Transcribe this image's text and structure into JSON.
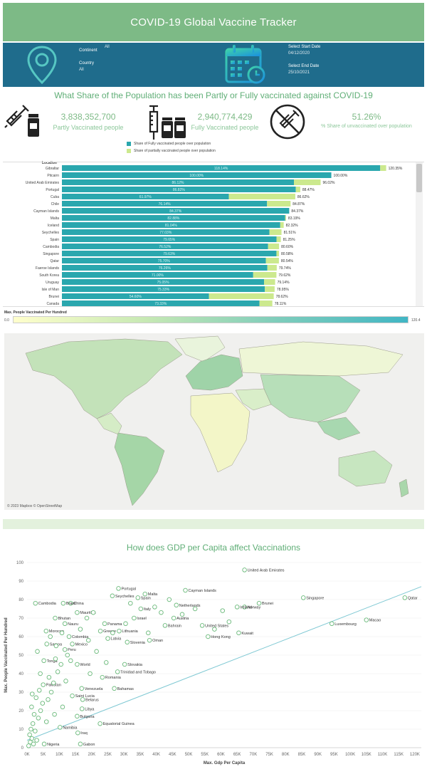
{
  "header": {
    "title": "COVID-19 Global Vaccine Tracker"
  },
  "filters": {
    "continent_label": "Continent",
    "continent_value": "All",
    "country_label": "Country",
    "country_value": "All",
    "start_label": "Select Start Date",
    "start_value": "04/12/2020",
    "end_label": "Select End Date",
    "end_value": "25/10/2021"
  },
  "kpi": {
    "title": "What Share of the Population has been Partly or Fully vaccinated against COVID-19",
    "partly_value": "3,838,352,700",
    "partly_label": "Partly Vaccinated people",
    "fully_value": "2,940,774,429",
    "fully_label": "Fully Vaccinated people",
    "unvax_value": "51.26%",
    "unvax_label": "% Share of unvaccinated over population"
  },
  "colors": {
    "fully": "#2aa7ae",
    "partly": "#cce98e",
    "accent": "#7dba86",
    "filter_bg": "#1f6c8c"
  },
  "bar_section": {
    "location_title": "Location",
    "legend_fully": "Share of Fully vaccinated people over population",
    "legend_partly": "Share of partially vaccinated people over population"
  },
  "scale": {
    "title": "Max. People Vaccinated Per Hundred",
    "min": "0.0",
    "max": "120.4"
  },
  "map": {
    "attribution": "© 2023 Mapbox © OpenStreetMap"
  },
  "scatter_title": "How does GDP per Capita affect Vaccinations",
  "chart_data": [
    {
      "type": "bar",
      "stacked": true,
      "categories": [
        "Gibraltar",
        "Pitcairn",
        "United Arab Emirates",
        "Portugal",
        "Cuba",
        "Chile",
        "Cayman Islands",
        "Malta",
        "Iceland",
        "Seychelles",
        "Spain",
        "Cambodia",
        "Singapore",
        "Qatar",
        "Faeroe Islands",
        "South Korea",
        "Uruguay",
        "Isle of Man",
        "Brunei",
        "Canada"
      ],
      "series": [
        {
          "name": "Share of Fully vaccinated people over population",
          "values": [
            118.14,
            100.0,
            86.12,
            86.82,
            61.97,
            76.14,
            84.37,
            82.88,
            81.04,
            77.03,
            79.65,
            76.52,
            79.63,
            75.7,
            76.26,
            71.0,
            75.05,
            75.33,
            54.6,
            73.33
          ]
        },
        {
          "name": "Share of partially vaccinated people over population",
          "values": [
            2.21,
            0.0,
            9.9,
            1.65,
            24.65,
            8.73,
            0.0,
            0.31,
            1.28,
            4.48,
            1.6,
            4.08,
            0.95,
            4.84,
            3.48,
            8.62,
            4.09,
            3.62,
            24.02,
            4.78
          ]
        }
      ],
      "totals": [
        "120.35%",
        "100.00%",
        "96.02%",
        "88.47%",
        "86.62%",
        "84.87%",
        "84.37%",
        "83.19%",
        "82.32%",
        "81.51%",
        "81.25%",
        "80.60%",
        "80.58%",
        "80.54%",
        "79.74%",
        "79.62%",
        "79.14%",
        "78.95%",
        "78.62%",
        "78.11%"
      ],
      "inner_labels": [
        "118.14%",
        "100.00%",
        "86.12%",
        "86.82%",
        "61.97%",
        "76.14%",
        "84.37%",
        "82.88%",
        "81.04%",
        "77.03%",
        "79.65%",
        "76.52%",
        "79.63%",
        "75.70%",
        "76.26%",
        "71.00%",
        "75.05%",
        "75.33%",
        "54.60%",
        "73.33%"
      ],
      "xlim": [
        0,
        125
      ]
    },
    {
      "type": "scatter",
      "title": "How does GDP per Capita affect Vaccinations",
      "xlabel": "Max. Gdp Per Capita",
      "ylabel": "Max. People Vaccinated Per Hundred",
      "xlim": [
        0,
        122000
      ],
      "ylim": [
        0,
        100
      ],
      "xticks": [
        "0K",
        "5K",
        "10K",
        "15K",
        "20K",
        "25K",
        "30K",
        "35K",
        "40K",
        "45K",
        "50K",
        "55K",
        "60K",
        "65K",
        "70K",
        "75K",
        "80K",
        "85K",
        "90K",
        "95K",
        "100K",
        "105K",
        "110K",
        "115K",
        "120K"
      ],
      "yticks": [
        0,
        10,
        20,
        30,
        40,
        50,
        60,
        70,
        80,
        90,
        100
      ],
      "trendline": {
        "x": [
          0,
          122000
        ],
        "y": [
          4,
          87
        ]
      },
      "points": [
        {
          "x": 67300,
          "y": 96,
          "label": "United Arab Emirates"
        },
        {
          "x": 116900,
          "y": 81,
          "label": "Qatar"
        },
        {
          "x": 85500,
          "y": 81,
          "label": "Singapore"
        },
        {
          "x": 105000,
          "y": 69,
          "label": "Macao"
        },
        {
          "x": 94300,
          "y": 67,
          "label": "Luxembourg"
        },
        {
          "x": 71800,
          "y": 78,
          "label": "Brunei"
        },
        {
          "x": 67300,
          "y": 76,
          "label": "Norway"
        },
        {
          "x": 65000,
          "y": 76,
          "label": "Ireland"
        },
        {
          "x": 54200,
          "y": 66,
          "label": "United States"
        },
        {
          "x": 56000,
          "y": 60,
          "label": "Hong Kong"
        },
        {
          "x": 65500,
          "y": 62,
          "label": "Kuwait"
        },
        {
          "x": 49000,
          "y": 85,
          "label": "Cayman Islands"
        },
        {
          "x": 46200,
          "y": 77,
          "label": "Netherlands"
        },
        {
          "x": 45400,
          "y": 70,
          "label": "Austria"
        },
        {
          "x": 42700,
          "y": 66,
          "label": "Bahrain"
        },
        {
          "x": 36500,
          "y": 83,
          "label": "Malta"
        },
        {
          "x": 34300,
          "y": 81,
          "label": "Spain"
        },
        {
          "x": 35200,
          "y": 75,
          "label": "Italy"
        },
        {
          "x": 33100,
          "y": 70,
          "label": "Israel"
        },
        {
          "x": 28300,
          "y": 86,
          "label": "Portugal"
        },
        {
          "x": 26400,
          "y": 82,
          "label": "Seychelles"
        },
        {
          "x": 28500,
          "y": 63,
          "label": "Lithuania"
        },
        {
          "x": 37900,
          "y": 58,
          "label": "Oman"
        },
        {
          "x": 31000,
          "y": 57,
          "label": "Slovenia"
        },
        {
          "x": 24000,
          "y": 67,
          "label": "Panama"
        },
        {
          "x": 22700,
          "y": 63,
          "label": "Greece"
        },
        {
          "x": 25000,
          "y": 59,
          "label": "Latvia"
        },
        {
          "x": 15500,
          "y": 73,
          "label": "Mauritius"
        },
        {
          "x": 13500,
          "y": 78,
          "label": "China"
        },
        {
          "x": 11200,
          "y": 78,
          "label": "Brazil"
        },
        {
          "x": 2600,
          "y": 78,
          "label": "Cambodia"
        },
        {
          "x": 8700,
          "y": 70,
          "label": "Bhutan"
        },
        {
          "x": 11700,
          "y": 67,
          "label": "Nauru"
        },
        {
          "x": 13000,
          "y": 60,
          "label": "Colombia"
        },
        {
          "x": 14000,
          "y": 56,
          "label": "Mexico"
        },
        {
          "x": 5900,
          "y": 63,
          "label": "Morocco"
        },
        {
          "x": 6100,
          "y": 56,
          "label": "Samoa"
        },
        {
          "x": 11700,
          "y": 53,
          "label": "Peru"
        },
        {
          "x": 5200,
          "y": 47,
          "label": "Tonga"
        },
        {
          "x": 15500,
          "y": 45,
          "label": "World"
        },
        {
          "x": 30200,
          "y": 45,
          "label": "Slovakia"
        },
        {
          "x": 28000,
          "y": 41,
          "label": "Trinidad and Tobago"
        },
        {
          "x": 23300,
          "y": 38,
          "label": "Romania"
        },
        {
          "x": 5000,
          "y": 34,
          "label": "Pakistan"
        },
        {
          "x": 16900,
          "y": 32,
          "label": "Venezuela"
        },
        {
          "x": 27000,
          "y": 32,
          "label": "Bahamas"
        },
        {
          "x": 14000,
          "y": 28,
          "label": "Saint Lucia"
        },
        {
          "x": 17200,
          "y": 26,
          "label": "Belarus"
        },
        {
          "x": 17000,
          "y": 21,
          "label": "Libya"
        },
        {
          "x": 15500,
          "y": 17,
          "label": "Bulgaria"
        },
        {
          "x": 22600,
          "y": 13,
          "label": "Equatorial Guinea"
        },
        {
          "x": 10200,
          "y": 11,
          "label": "Namibia"
        },
        {
          "x": 15700,
          "y": 8,
          "label": "Iraq"
        },
        {
          "x": 16500,
          "y": 2,
          "label": "Gabon"
        },
        {
          "x": 5300,
          "y": 2,
          "label": "Nigeria"
        },
        {
          "x": 500,
          "y": 1,
          "label": ""
        },
        {
          "x": 1000,
          "y": 3,
          "label": ""
        },
        {
          "x": 1500,
          "y": 5,
          "label": ""
        },
        {
          "x": 2000,
          "y": 2,
          "label": ""
        },
        {
          "x": 800,
          "y": 7,
          "label": ""
        },
        {
          "x": 1200,
          "y": 10,
          "label": ""
        },
        {
          "x": 2500,
          "y": 9,
          "label": ""
        },
        {
          "x": 3000,
          "y": 4,
          "label": ""
        },
        {
          "x": 1800,
          "y": 13,
          "label": ""
        },
        {
          "x": 3500,
          "y": 16,
          "label": ""
        },
        {
          "x": 2200,
          "y": 18,
          "label": ""
        },
        {
          "x": 4200,
          "y": 20,
          "label": ""
        },
        {
          "x": 1400,
          "y": 22,
          "label": ""
        },
        {
          "x": 4800,
          "y": 24,
          "label": ""
        },
        {
          "x": 2800,
          "y": 27,
          "label": ""
        },
        {
          "x": 6500,
          "y": 26,
          "label": ""
        },
        {
          "x": 1600,
          "y": 29,
          "label": ""
        },
        {
          "x": 7500,
          "y": 30,
          "label": ""
        },
        {
          "x": 3800,
          "y": 31,
          "label": ""
        },
        {
          "x": 8200,
          "y": 35,
          "label": ""
        },
        {
          "x": 6800,
          "y": 38,
          "label": ""
        },
        {
          "x": 9500,
          "y": 41,
          "label": ""
        },
        {
          "x": 4100,
          "y": 40,
          "label": ""
        },
        {
          "x": 10500,
          "y": 45,
          "label": ""
        },
        {
          "x": 8800,
          "y": 48,
          "label": ""
        },
        {
          "x": 12500,
          "y": 50,
          "label": ""
        },
        {
          "x": 3200,
          "y": 52,
          "label": ""
        },
        {
          "x": 13500,
          "y": 47,
          "label": ""
        },
        {
          "x": 9000,
          "y": 55,
          "label": ""
        },
        {
          "x": 7200,
          "y": 60,
          "label": ""
        },
        {
          "x": 10800,
          "y": 62,
          "label": ""
        },
        {
          "x": 16500,
          "y": 64,
          "label": ""
        },
        {
          "x": 18500,
          "y": 70,
          "label": ""
        },
        {
          "x": 20500,
          "y": 73,
          "label": ""
        },
        {
          "x": 19000,
          "y": 58,
          "label": ""
        },
        {
          "x": 21500,
          "y": 52,
          "label": ""
        },
        {
          "x": 26500,
          "y": 62,
          "label": ""
        },
        {
          "x": 30500,
          "y": 67,
          "label": ""
        },
        {
          "x": 32000,
          "y": 78,
          "label": ""
        },
        {
          "x": 39500,
          "y": 76,
          "label": ""
        },
        {
          "x": 41500,
          "y": 73,
          "label": ""
        },
        {
          "x": 44000,
          "y": 80,
          "label": ""
        },
        {
          "x": 48000,
          "y": 72,
          "label": ""
        },
        {
          "x": 52000,
          "y": 75,
          "label": ""
        },
        {
          "x": 58000,
          "y": 64,
          "label": ""
        },
        {
          "x": 60500,
          "y": 74,
          "label": ""
        },
        {
          "x": 62500,
          "y": 68,
          "label": ""
        },
        {
          "x": 37500,
          "y": 62,
          "label": ""
        },
        {
          "x": 24500,
          "y": 46,
          "label": ""
        },
        {
          "x": 19500,
          "y": 40,
          "label": ""
        },
        {
          "x": 12000,
          "y": 36,
          "label": ""
        },
        {
          "x": 6000,
          "y": 14,
          "label": ""
        },
        {
          "x": 8500,
          "y": 18,
          "label": ""
        },
        {
          "x": 11000,
          "y": 22,
          "label": ""
        }
      ]
    }
  ]
}
